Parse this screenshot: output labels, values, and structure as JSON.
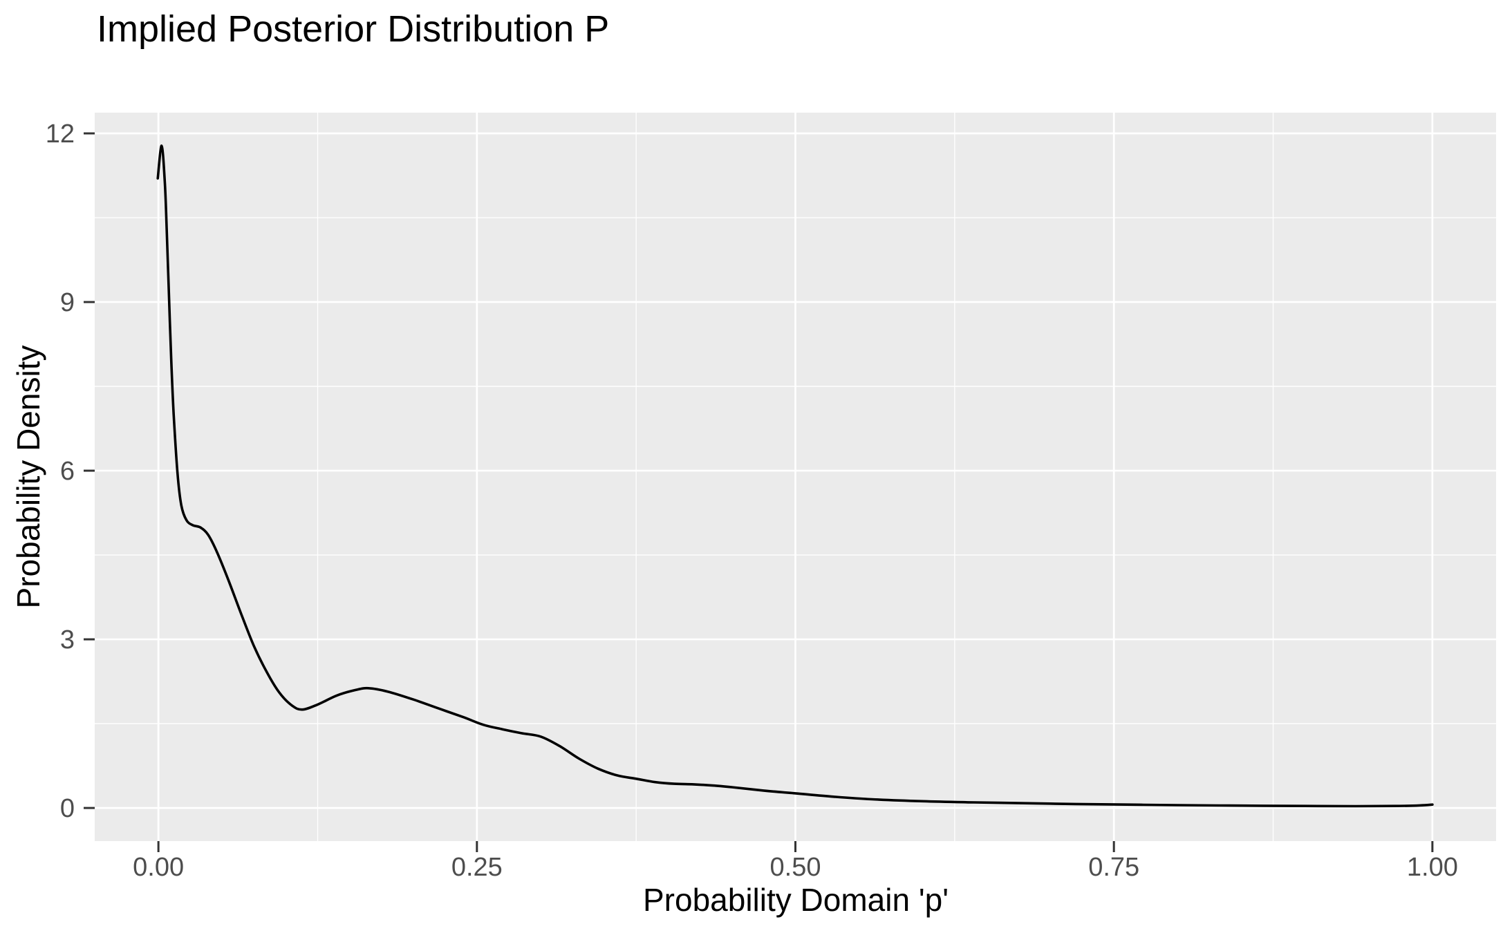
{
  "figure": {
    "background": "#FFFFFF"
  },
  "chart_data": {
    "type": "line",
    "subtype": "density-curve",
    "title": "Implied Posterior Distribution P",
    "xlabel": "Probability Domain 'p'",
    "ylabel": "Probability Density",
    "legend": "none",
    "grid": true,
    "xlim": [
      0,
      1
    ],
    "ylim": [
      0,
      11.78
    ],
    "x_ticks": {
      "values": [
        0,
        0.25,
        0.5,
        0.75,
        1.0
      ],
      "labels": [
        "0.00",
        "0.25",
        "0.50",
        "0.75",
        "1.00"
      ]
    },
    "y_ticks": {
      "values": [
        0,
        3,
        6,
        9,
        12
      ],
      "labels": [
        "0",
        "3",
        "6",
        "9",
        "12"
      ]
    },
    "x_minor": [
      0.125,
      0.375,
      0.625,
      0.875
    ],
    "y_minor": [
      1.5,
      4.5,
      7.5,
      10.5
    ],
    "colors": {
      "panel_bg": "#EBEBEB",
      "grid": "#FFFFFF",
      "line": "#000000",
      "title_text": "#000000",
      "axis_title_text": "#000000",
      "tick_label_text": "#4D4D4D",
      "tick_mark": "#333333"
    },
    "series": [
      {
        "name": "posterior_density",
        "points": [
          [
            -0.0005,
            11.2
          ],
          [
            0.0025,
            11.78
          ],
          [
            0.005,
            11.15
          ],
          [
            0.0065,
            10.3
          ],
          [
            0.008,
            9.3
          ],
          [
            0.01,
            8.0
          ],
          [
            0.012,
            7.0
          ],
          [
            0.015,
            5.95
          ],
          [
            0.018,
            5.38
          ],
          [
            0.022,
            5.12
          ],
          [
            0.027,
            5.03
          ],
          [
            0.033,
            4.99
          ],
          [
            0.039,
            4.86
          ],
          [
            0.046,
            4.55
          ],
          [
            0.055,
            4.05
          ],
          [
            0.065,
            3.45
          ],
          [
            0.075,
            2.88
          ],
          [
            0.085,
            2.42
          ],
          [
            0.095,
            2.05
          ],
          [
            0.105,
            1.82
          ],
          [
            0.113,
            1.75
          ],
          [
            0.125,
            1.84
          ],
          [
            0.14,
            2.0
          ],
          [
            0.155,
            2.1
          ],
          [
            0.165,
            2.13
          ],
          [
            0.18,
            2.07
          ],
          [
            0.2,
            1.93
          ],
          [
            0.22,
            1.77
          ],
          [
            0.24,
            1.61
          ],
          [
            0.255,
            1.48
          ],
          [
            0.27,
            1.4
          ],
          [
            0.285,
            1.33
          ],
          [
            0.3,
            1.27
          ],
          [
            0.315,
            1.1
          ],
          [
            0.33,
            0.88
          ],
          [
            0.345,
            0.7
          ],
          [
            0.36,
            0.58
          ],
          [
            0.375,
            0.52
          ],
          [
            0.39,
            0.46
          ],
          [
            0.405,
            0.43
          ],
          [
            0.42,
            0.42
          ],
          [
            0.435,
            0.4
          ],
          [
            0.45,
            0.37
          ],
          [
            0.475,
            0.31
          ],
          [
            0.5,
            0.26
          ],
          [
            0.53,
            0.2
          ],
          [
            0.56,
            0.155
          ],
          [
            0.6,
            0.12
          ],
          [
            0.64,
            0.1
          ],
          [
            0.68,
            0.085
          ],
          [
            0.72,
            0.07
          ],
          [
            0.76,
            0.06
          ],
          [
            0.8,
            0.05
          ],
          [
            0.85,
            0.042
          ],
          [
            0.9,
            0.035
          ],
          [
            0.94,
            0.032
          ],
          [
            0.97,
            0.035
          ],
          [
            0.99,
            0.045
          ],
          [
            1.0,
            0.06
          ]
        ]
      }
    ]
  }
}
